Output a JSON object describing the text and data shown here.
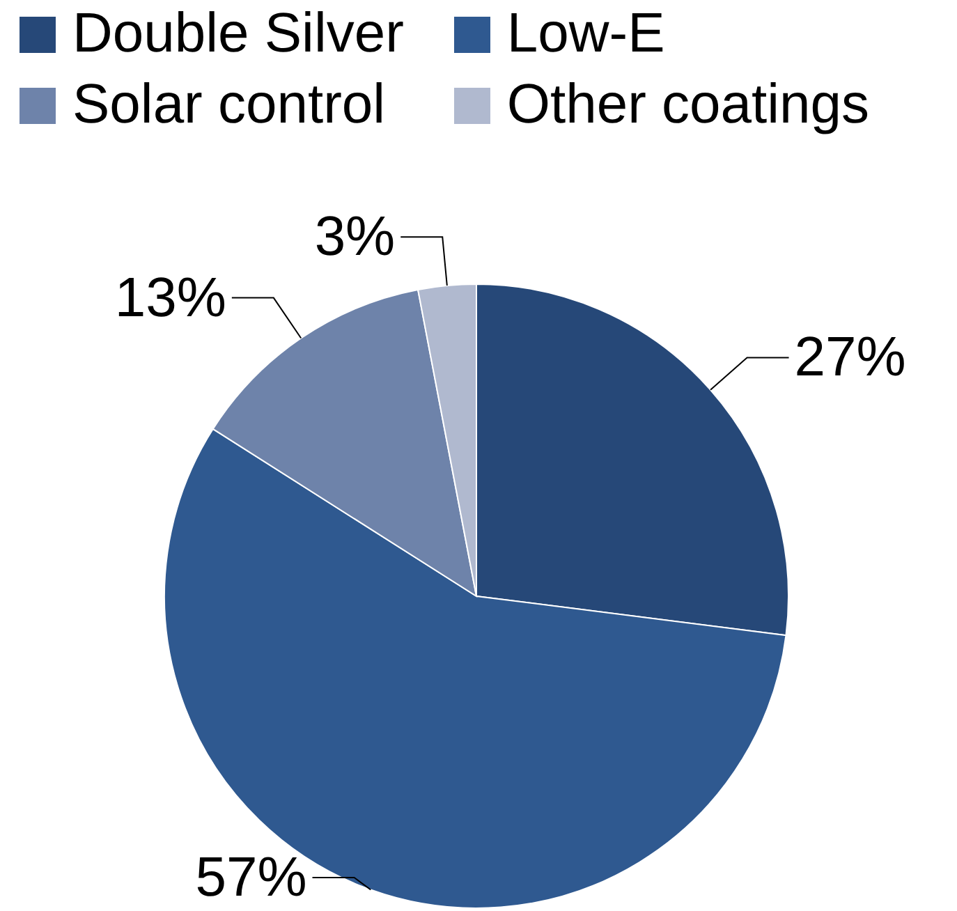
{
  "chart_data": {
    "type": "pie",
    "categories": [
      "Double Silver",
      "Low-E",
      "Solar control",
      "Other coatings"
    ],
    "values": [
      27,
      57,
      13,
      3
    ],
    "colors": [
      "#264878",
      "#2f5990",
      "#6e83aa",
      "#b0b9cf"
    ],
    "value_labels": [
      "27%",
      "57%",
      "13%",
      "3%"
    ],
    "legend": "top"
  }
}
